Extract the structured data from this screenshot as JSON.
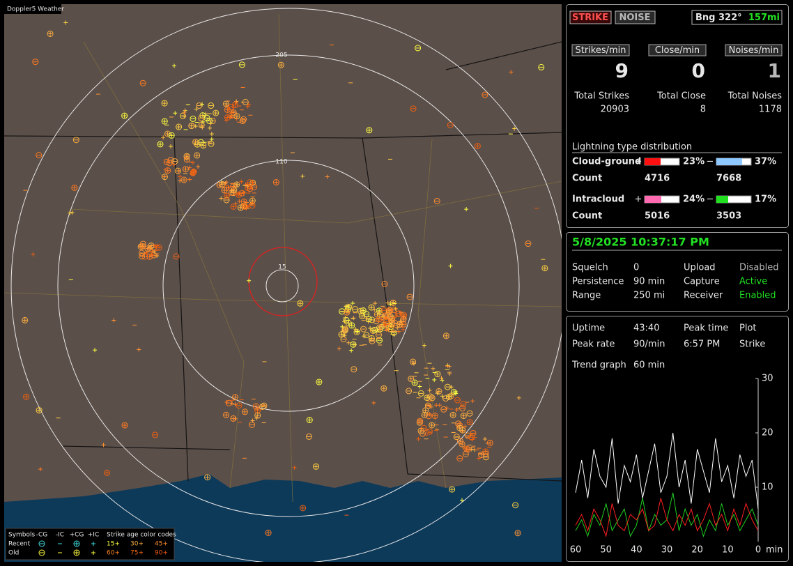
{
  "map": {
    "title": "Doppler5 Weather",
    "ring_labels": [
      "205",
      "110",
      "15"
    ],
    "legend": {
      "header": [
        "Symbols",
        "-CG",
        "-IC",
        "+CG",
        "+IC",
        "Strike age color codes"
      ],
      "rows": [
        {
          "label": "Recent",
          "ages": [
            "15+",
            "30+",
            "45+"
          ]
        },
        {
          "label": "Old",
          "ages": [
            "60+",
            "75+",
            "90+"
          ]
        }
      ]
    }
  },
  "status": {
    "strike": "STRIKE",
    "noise": "NOISE",
    "bearing": "Bng 322°",
    "distance": "157mi"
  },
  "rates": [
    {
      "label": "Strikes/min",
      "value": 9
    },
    {
      "label": "Close/min",
      "value": 0
    },
    {
      "label": "Noises/min",
      "value": 1
    }
  ],
  "totals": [
    {
      "label": "Total Strikes",
      "value": 20903
    },
    {
      "label": "Total Close",
      "value": 8
    },
    {
      "label": "Total Noises",
      "value": 1178
    }
  ],
  "distribution": {
    "title": "Lightning type distribution",
    "pos_sign": "+",
    "neg_sign": "−",
    "count_label": "Count",
    "rows": [
      {
        "label": "Cloud-ground",
        "pos": {
          "value": 23,
          "label": "23%"
        },
        "neg": {
          "value": 37,
          "label": "37%"
        },
        "pos_count": 4716,
        "neg_count": 7668
      },
      {
        "label": "Intracloud",
        "pos": {
          "value": 24,
          "label": "24%"
        },
        "neg": {
          "value": 17,
          "label": "17%"
        },
        "pos_count": 5016,
        "neg_count": 3503
      }
    ]
  },
  "datetime": "5/8/2025 10:37:17 PM",
  "settings": [
    [
      {
        "label": "Squelch",
        "value": "0"
      },
      {
        "label": "Upload",
        "value": "Disabled"
      }
    ],
    [
      {
        "label": "Persistence",
        "value": "90 min"
      },
      {
        "label": "Capture",
        "value": "Active"
      }
    ],
    [
      {
        "label": "Range",
        "value": "250 mi"
      },
      {
        "label": "Receiver",
        "value": "Enabled"
      }
    ]
  ],
  "stats": [
    [
      {
        "label": "Uptime",
        "value": "43:40"
      },
      {
        "label": "Peak time",
        "value": "Plot"
      }
    ],
    [
      {
        "label": "Peak rate",
        "value": "90/min"
      },
      {
        "label": "6:57 PM",
        "value": "Strike"
      }
    ]
  ],
  "trend": {
    "label": "Trend graph",
    "window": "60 min",
    "xunit": "min",
    "xlim": [
      60,
      0
    ],
    "ylim": [
      0,
      30
    ],
    "xticks": [
      60,
      50,
      40,
      30,
      20,
      10,
      0
    ],
    "yticks": [
      10,
      20,
      30
    ],
    "x": [
      60,
      58,
      56,
      54,
      52,
      50,
      48,
      46,
      44,
      42,
      40,
      38,
      36,
      34,
      32,
      30,
      28,
      26,
      24,
      22,
      20,
      18,
      16,
      14,
      12,
      10,
      8,
      6,
      4,
      2,
      0
    ],
    "series": [
      {
        "color": "#ffffff",
        "values": [
          9,
          15,
          8,
          17,
          12,
          10,
          19,
          7,
          14,
          11,
          16,
          8,
          13,
          18,
          9,
          12,
          20,
          10,
          15,
          7,
          17,
          13,
          9,
          19,
          11,
          14,
          8,
          16,
          12,
          15,
          6
        ]
      },
      {
        "color": "#ff2020",
        "values": [
          3,
          5,
          2,
          6,
          4,
          1,
          7,
          3,
          2,
          5,
          4,
          6,
          2,
          3,
          8,
          4,
          2,
          5,
          3,
          6,
          2,
          4,
          7,
          3,
          5,
          2,
          6,
          3,
          7,
          4,
          2
        ]
      },
      {
        "color": "#20d020",
        "values": [
          2,
          4,
          1,
          5,
          3,
          7,
          2,
          4,
          6,
          1,
          3,
          8,
          2,
          5,
          3,
          4,
          9,
          2,
          6,
          3,
          5,
          1,
          4,
          2,
          7,
          3,
          5,
          2,
          4,
          6,
          3
        ]
      }
    ]
  }
}
